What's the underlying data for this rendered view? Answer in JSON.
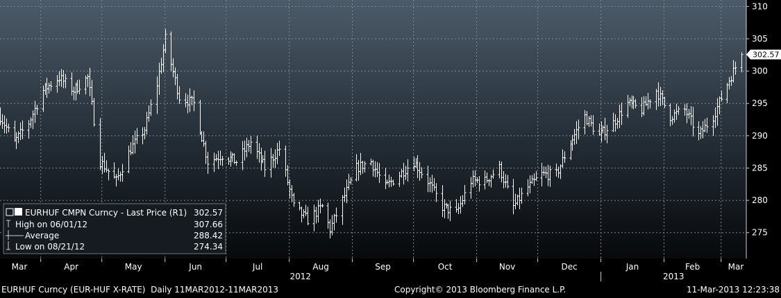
{
  "chart_data": {
    "type": "ohlc",
    "y_axis_ticks": [
      275,
      280,
      285,
      290,
      295,
      300,
      305,
      310
    ],
    "ylim": [
      271,
      311
    ],
    "x_month_labels": [
      "Mar",
      "Apr",
      "May",
      "Jun",
      "Jul",
      "Aug",
      "Sep",
      "Oct",
      "Nov",
      "Dec",
      "Jan",
      "Feb",
      "Mar"
    ],
    "x_year_labels": [
      "2012",
      "2013"
    ],
    "last_price_label": "302.57",
    "legend": {
      "title": "EURHUF CMPN Curncy - Last Price (R1)",
      "title_value": "302.57",
      "rows": [
        {
          "label": "High on 06/01/12",
          "value": "307.66"
        },
        {
          "label": "Average",
          "value": "288.42"
        },
        {
          "label": "Low on 08/21/12",
          "value": "274.34"
        }
      ]
    },
    "footer": {
      "left": "EURHUF Curncy (EUR-HUF X-RATE)  Daily 11MAR2012-11MAR2013",
      "center": "Copyright© 2013 Bloomberg Finance L.P.",
      "right": "11-Mar-2013 12:23:38"
    },
    "price_path_anchors": [
      {
        "date": "2012-03-12",
        "value": 293
      },
      {
        "date": "2012-03-19",
        "value": 289
      },
      {
        "date": "2012-03-26",
        "value": 292
      },
      {
        "date": "2012-04-02",
        "value": 297
      },
      {
        "date": "2012-04-10",
        "value": 299
      },
      {
        "date": "2012-04-17",
        "value": 297
      },
      {
        "date": "2012-04-24",
        "value": 299
      },
      {
        "date": "2012-04-30",
        "value": 286
      },
      {
        "date": "2012-05-08",
        "value": 283
      },
      {
        "date": "2012-05-15",
        "value": 288
      },
      {
        "date": "2012-05-22",
        "value": 291
      },
      {
        "date": "2012-05-28",
        "value": 298
      },
      {
        "date": "2012-06-01",
        "value": 305
      },
      {
        "date": "2012-06-08",
        "value": 296
      },
      {
        "date": "2012-06-15",
        "value": 295
      },
      {
        "date": "2012-06-22",
        "value": 286
      },
      {
        "date": "2012-06-29",
        "value": 287
      },
      {
        "date": "2012-07-06",
        "value": 286
      },
      {
        "date": "2012-07-13",
        "value": 289
      },
      {
        "date": "2012-07-20",
        "value": 285
      },
      {
        "date": "2012-07-27",
        "value": 288
      },
      {
        "date": "2012-08-03",
        "value": 279
      },
      {
        "date": "2012-08-10",
        "value": 277
      },
      {
        "date": "2012-08-17",
        "value": 279
      },
      {
        "date": "2012-08-21",
        "value": 275.5
      },
      {
        "date": "2012-08-27",
        "value": 280
      },
      {
        "date": "2012-09-03",
        "value": 285
      },
      {
        "date": "2012-09-10",
        "value": 286
      },
      {
        "date": "2012-09-17",
        "value": 282
      },
      {
        "date": "2012-09-24",
        "value": 284
      },
      {
        "date": "2012-10-01",
        "value": 286
      },
      {
        "date": "2012-10-08",
        "value": 283
      },
      {
        "date": "2012-10-15",
        "value": 279
      },
      {
        "date": "2012-10-22",
        "value": 278
      },
      {
        "date": "2012-10-29",
        "value": 283
      },
      {
        "date": "2012-11-05",
        "value": 283
      },
      {
        "date": "2012-11-12",
        "value": 285
      },
      {
        "date": "2012-11-19",
        "value": 279
      },
      {
        "date": "2012-11-26",
        "value": 282
      },
      {
        "date": "2012-12-03",
        "value": 284
      },
      {
        "date": "2012-12-10",
        "value": 284
      },
      {
        "date": "2012-12-17",
        "value": 289
      },
      {
        "date": "2012-12-24",
        "value": 293
      },
      {
        "date": "2012-12-31",
        "value": 290
      },
      {
        "date": "2013-01-07",
        "value": 292
      },
      {
        "date": "2013-01-14",
        "value": 295
      },
      {
        "date": "2013-01-21",
        "value": 294
      },
      {
        "date": "2013-01-28",
        "value": 297
      },
      {
        "date": "2013-02-04",
        "value": 293
      },
      {
        "date": "2013-02-11",
        "value": 294
      },
      {
        "date": "2013-02-18",
        "value": 290
      },
      {
        "date": "2013-02-25",
        "value": 293
      },
      {
        "date": "2013-03-04",
        "value": 298
      },
      {
        "date": "2013-03-11",
        "value": 302.57
      }
    ]
  }
}
